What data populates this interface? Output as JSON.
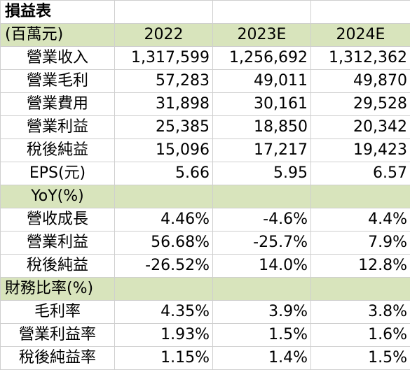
{
  "title": "損益表",
  "header": {
    "unit": "(百萬元)",
    "years": [
      "2022",
      "2023E",
      "2024E"
    ]
  },
  "income_rows": [
    {
      "label": "營業收入",
      "values": [
        "1,317,599",
        "1,256,692",
        "1,312,362"
      ]
    },
    {
      "label": "營業毛利",
      "values": [
        "57,283",
        "49,011",
        "49,870"
      ]
    },
    {
      "label": "營業費用",
      "values": [
        "31,898",
        "30,161",
        "29,528"
      ]
    },
    {
      "label": "營業利益",
      "values": [
        "25,385",
        "18,850",
        "20,342"
      ]
    },
    {
      "label": "稅後純益",
      "values": [
        "15,096",
        "17,217",
        "19,423"
      ]
    },
    {
      "label": "EPS(元)",
      "values": [
        "5.66",
        "5.95",
        "6.57"
      ]
    }
  ],
  "yoy_section": "YoY(%)",
  "yoy_rows": [
    {
      "label": "營收成長",
      "values": [
        "4.46%",
        "-4.6%",
        "4.4%"
      ]
    },
    {
      "label": "營業利益",
      "values": [
        "56.68%",
        "-25.7%",
        "7.9%"
      ]
    },
    {
      "label": "稅後純益",
      "values": [
        "-26.52%",
        "14.0%",
        "12.8%"
      ]
    }
  ],
  "ratio_section": "財務比率(%)",
  "ratio_rows": [
    {
      "label": "毛利率",
      "values": [
        "4.35%",
        "3.9%",
        "3.8%"
      ]
    },
    {
      "label": "營業利益率",
      "values": [
        "1.93%",
        "1.5%",
        "1.6%"
      ]
    },
    {
      "label": "稅後純益率",
      "values": [
        "1.15%",
        "1.4%",
        "1.5%"
      ]
    }
  ],
  "colors": {
    "section_fill": "#d8e4bc",
    "grid_line": "#cfcfcf"
  }
}
